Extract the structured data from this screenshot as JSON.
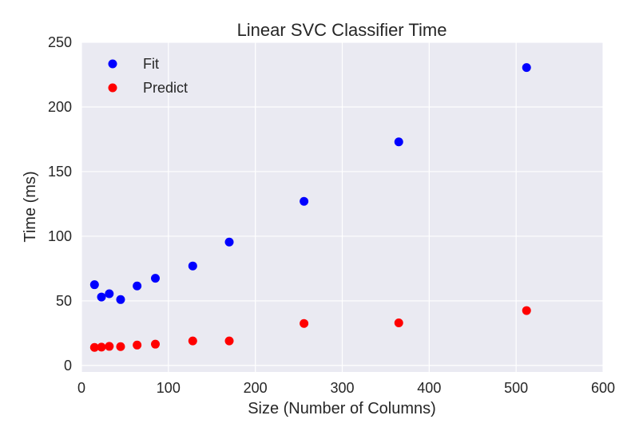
{
  "chart_data": {
    "type": "scatter",
    "title": "Linear SVC Classifier Time",
    "xlabel": "Size (Number of Columns)",
    "ylabel": "Time (ms)",
    "xlim": [
      0,
      600
    ],
    "ylim": [
      -5,
      250
    ],
    "xticks": [
      0,
      100,
      200,
      300,
      400,
      500,
      600
    ],
    "yticks": [
      0,
      50,
      100,
      150,
      200,
      250
    ],
    "grid": true,
    "background": "#eaeaf2",
    "legend_position": "top-left",
    "series": [
      {
        "name": "Fit",
        "color": "#0000ff",
        "points": [
          [
            15,
            62.5
          ],
          [
            23,
            53
          ],
          [
            32,
            55.5
          ],
          [
            45,
            51
          ],
          [
            64,
            61.5
          ],
          [
            85,
            67.5
          ],
          [
            128,
            77
          ],
          [
            170,
            95.5
          ],
          [
            256,
            127
          ],
          [
            365,
            173
          ],
          [
            512,
            230.5
          ]
        ]
      },
      {
        "name": "Predict",
        "color": "#ff0000",
        "points": [
          [
            15,
            14
          ],
          [
            23,
            14.2
          ],
          [
            32,
            14.8
          ],
          [
            45,
            14.6
          ],
          [
            64,
            15.8
          ],
          [
            85,
            16.5
          ],
          [
            128,
            19
          ],
          [
            170,
            19
          ],
          [
            256,
            32.5
          ],
          [
            365,
            33
          ],
          [
            512,
            42.5
          ]
        ]
      }
    ]
  }
}
